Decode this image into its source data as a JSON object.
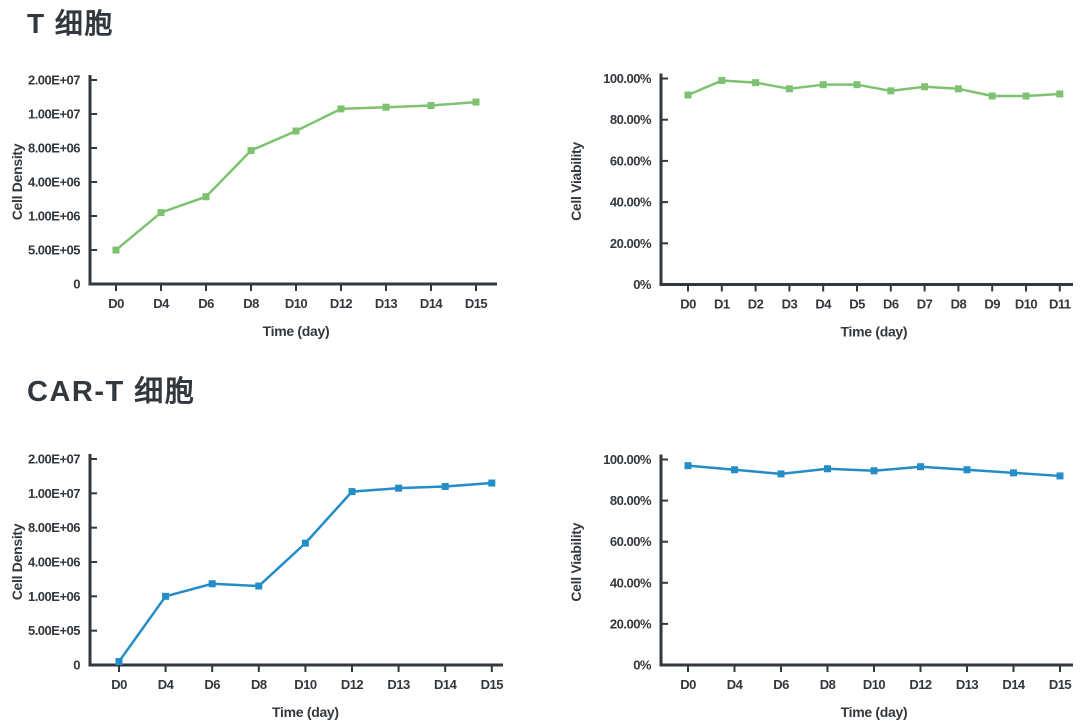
{
  "page": {
    "background_color": "#ffffff",
    "text_color": "#32383d"
  },
  "section_titles": [
    {
      "id": "t_cell",
      "text": "T 细胞"
    },
    {
      "id": "car_t_cell",
      "text": "CAR-T 细胞"
    }
  ],
  "chart_data": [
    {
      "id": "t_cell_density",
      "type": "line",
      "section": "T 细胞",
      "xlabel": "Time (day)",
      "ylabel": "Cell Density",
      "categories": [
        "D0",
        "D4",
        "D6",
        "D8",
        "D10",
        "D12",
        "D13",
        "D14",
        "D15"
      ],
      "values": [
        500000,
        1300000,
        2700000,
        7700000,
        9000000,
        11500000,
        12000000,
        12500000,
        13500000
      ],
      "y_ticks": [
        0,
        500000,
        1000000,
        4000000,
        8000000,
        10000000,
        20000000
      ],
      "y_tick_labels": [
        "0",
        "5.00E+05",
        "1.00E+06",
        "4.00E+06",
        "8.00E+06",
        "1.00E+07",
        "2.00E+07"
      ],
      "y_scale": "equal-tick-spacing",
      "line_color": "#7ec271",
      "marker": "square",
      "grid": false,
      "legend": "none"
    },
    {
      "id": "t_cell_viability",
      "type": "line",
      "section": "T 细胞",
      "xlabel": "Time (day)",
      "ylabel": "Cell Viability",
      "categories": [
        "D0",
        "D1",
        "D2",
        "D3",
        "D4",
        "D5",
        "D6",
        "D7",
        "D8",
        "D9",
        "D10",
        "D11"
      ],
      "values": [
        92,
        99,
        98,
        95,
        97,
        97,
        94,
        96,
        95,
        91.5,
        91.5,
        92.5
      ],
      "values_unit": "%",
      "y_ticks": [
        0,
        20,
        40,
        60,
        80,
        100
      ],
      "y_tick_labels": [
        "0%",
        "20.00%",
        "40.00%",
        "60.00%",
        "80.00%",
        "100.00%"
      ],
      "y_scale": "linear",
      "ylim": [
        0,
        100
      ],
      "line_color": "#7ec271",
      "marker": "square",
      "grid": false,
      "legend": "none"
    },
    {
      "id": "car_t_density",
      "type": "line",
      "section": "CAR-T 细胞",
      "xlabel": "Time (day)",
      "ylabel": "Cell Density",
      "categories": [
        "D0",
        "D4",
        "D6",
        "D8",
        "D10",
        "D12",
        "D13",
        "D14",
        "D15"
      ],
      "values": [
        50000,
        1000000,
        2100000,
        1900000,
        6200000,
        10500000,
        11500000,
        12000000,
        13000000
      ],
      "y_ticks": [
        0,
        500000,
        1000000,
        4000000,
        8000000,
        10000000,
        20000000
      ],
      "y_tick_labels": [
        "0",
        "5.00E+05",
        "1.00E+06",
        "4.00E+06",
        "8.00E+06",
        "1.00E+07",
        "2.00E+07"
      ],
      "y_scale": "equal-tick-spacing",
      "line_color": "#248cc6",
      "marker": "square",
      "grid": false,
      "legend": "none"
    },
    {
      "id": "car_t_viability",
      "type": "line",
      "section": "CAR-T 细胞",
      "xlabel": "Time (day)",
      "ylabel": "Cell Viability",
      "categories": [
        "D0",
        "D4",
        "D6",
        "D8",
        "D10",
        "D12",
        "D13",
        "D14",
        "D15"
      ],
      "values": [
        97,
        95,
        93,
        95.5,
        94.5,
        96.5,
        95,
        93.5,
        92
      ],
      "values_unit": "%",
      "y_ticks": [
        0,
        20,
        40,
        60,
        80,
        100
      ],
      "y_tick_labels": [
        "0%",
        "20.00%",
        "40.00%",
        "60.00%",
        "80.00%",
        "100.00%"
      ],
      "y_scale": "linear",
      "ylim": [
        0,
        100
      ],
      "line_color": "#248cc6",
      "marker": "square",
      "grid": false,
      "legend": "none"
    }
  ]
}
